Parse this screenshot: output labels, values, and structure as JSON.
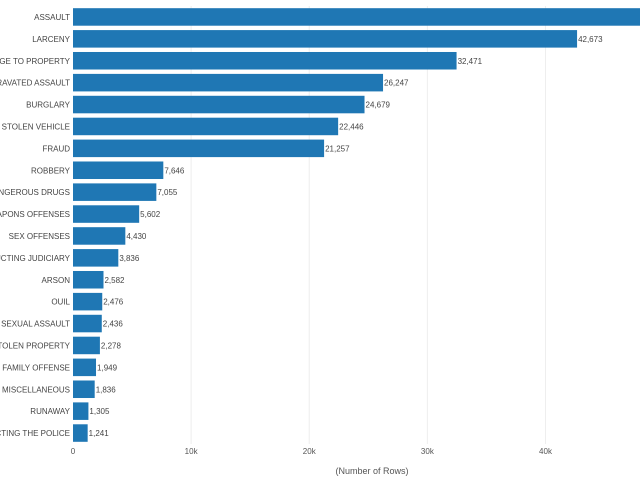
{
  "chart_data": {
    "type": "bar",
    "orientation": "horizontal",
    "categories": [
      "ASSAULT",
      "LARCENY",
      "MAGE TO PROPERTY",
      "GRAVATED ASSAULT",
      "BURGLARY",
      "STOLEN VEHICLE",
      "FRAUD",
      "ROBBERY",
      "DANGEROUS DRUGS",
      "EAPONS OFFENSES",
      "SEX OFFENSES",
      "RUCTING JUDICIARY",
      "ARSON",
      "OUIL",
      "SEXUAL ASSAULT",
      "STOLEN PROPERTY",
      "FAMILY OFFENSE",
      "MISCELLANEOUS",
      "RUNAWAY",
      "UCTING THE POLICE"
    ],
    "values": [
      48000,
      42673,
      32471,
      26247,
      24679,
      22446,
      21257,
      7646,
      7055,
      5602,
      4430,
      3836,
      2582,
      2476,
      2436,
      2278,
      1949,
      1836,
      1305,
      1241
    ],
    "value_labels": [
      "",
      "42,673",
      "32,471",
      "26,247",
      "24,679",
      "22,446",
      "21,257",
      "7,646",
      "7,055",
      "5,602",
      "4,430",
      "3,836",
      "2,582",
      "2,476",
      "2,436",
      "2,278",
      "1,949",
      "1,836",
      "1,305",
      "1,241"
    ],
    "xlabel": "(Number of Rows)",
    "ylabel": "",
    "xlim": [
      0,
      48000
    ],
    "xticks": [
      0,
      10000,
      20000,
      30000,
      40000
    ],
    "xtick_labels": [
      "0",
      "10k",
      "20k",
      "30k",
      "40k"
    ],
    "grid": "vertical",
    "legend": "none",
    "bar_color": "#1f77b4"
  }
}
